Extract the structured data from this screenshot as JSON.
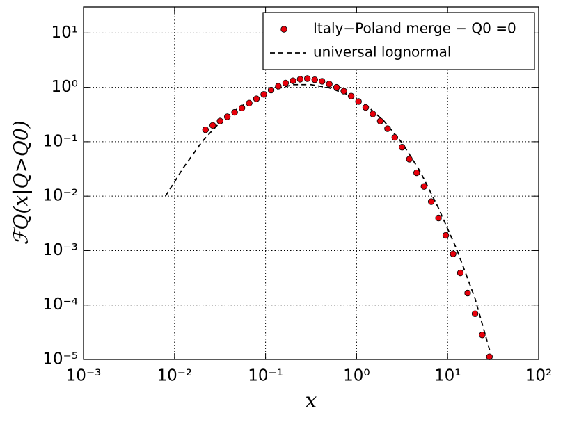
{
  "chart_data": {
    "type": "scatter",
    "xlabel": "x",
    "ylabel": "ℱQ(x|Q>Q0)",
    "xscale": "log",
    "yscale": "log",
    "grid": true,
    "legend": "upper right",
    "xlim": [
      0.001,
      100
    ],
    "ylim": [
      1e-05,
      30
    ],
    "xticks": [
      {
        "value": 0.001,
        "label": "10⁻³"
      },
      {
        "value": 0.01,
        "label": "10⁻²"
      },
      {
        "value": 0.1,
        "label": "10⁻¹"
      },
      {
        "value": 1,
        "label": "10⁰"
      },
      {
        "value": 10,
        "label": "10¹"
      },
      {
        "value": 100,
        "label": "10²"
      }
    ],
    "yticks": [
      {
        "value": 1e-05,
        "label": "10⁻⁵"
      },
      {
        "value": 0.0001,
        "label": "10⁻⁴"
      },
      {
        "value": 0.001,
        "label": "10⁻³"
      },
      {
        "value": 0.01,
        "label": "10⁻²"
      },
      {
        "value": 0.1,
        "label": "10⁻¹"
      },
      {
        "value": 1,
        "label": "10⁰"
      },
      {
        "value": 10,
        "label": "10¹"
      }
    ],
    "series": [
      {
        "name": "Italy−Poland merge − Q0 =0",
        "type": "scatter",
        "color": "#e8000b",
        "x": [
          0.0219,
          0.0263,
          0.0316,
          0.038,
          0.0457,
          0.055,
          0.0661,
          0.0794,
          0.0955,
          0.115,
          0.138,
          0.166,
          0.2,
          0.24,
          0.288,
          0.347,
          0.417,
          0.501,
          0.603,
          0.724,
          0.871,
          1.05,
          1.26,
          1.51,
          1.82,
          2.19,
          2.63,
          3.16,
          3.8,
          4.57,
          5.5,
          6.61,
          7.94,
          9.55,
          11.5,
          13.8,
          16.6,
          20.0,
          24.0,
          28.8
        ],
        "values": [
          0.166,
          0.2,
          0.24,
          0.288,
          0.347,
          0.417,
          0.513,
          0.617,
          0.741,
          0.891,
          1.05,
          1.2,
          1.32,
          1.41,
          1.45,
          1.38,
          1.29,
          1.15,
          1.0,
          0.851,
          0.692,
          0.55,
          0.427,
          0.324,
          0.24,
          0.174,
          0.12,
          0.0794,
          0.0479,
          0.0269,
          0.0151,
          0.00794,
          0.00398,
          0.00191,
          0.000871,
          0.000389,
          0.000166,
          6.92e-05,
          2.82e-05,
          1.12e-05
        ]
      },
      {
        "name": "universal lognormal",
        "type": "line",
        "color": "#000000",
        "dash": "7,5",
        "x": [
          0.00794,
          0.0126,
          0.02,
          0.0316,
          0.0501,
          0.0794,
          0.126,
          0.2,
          0.316,
          0.501,
          0.794,
          1.26,
          2.0,
          3.16,
          5.01,
          7.94,
          12.6,
          20.0,
          29.5
        ],
        "values": [
          0.01,
          0.0339,
          0.1,
          0.229,
          0.417,
          0.661,
          0.912,
          1.12,
          1.12,
          0.977,
          0.741,
          0.479,
          0.24,
          0.0955,
          0.0282,
          0.00603,
          0.00105,
          0.000132,
          1.32e-05
        ]
      }
    ]
  }
}
